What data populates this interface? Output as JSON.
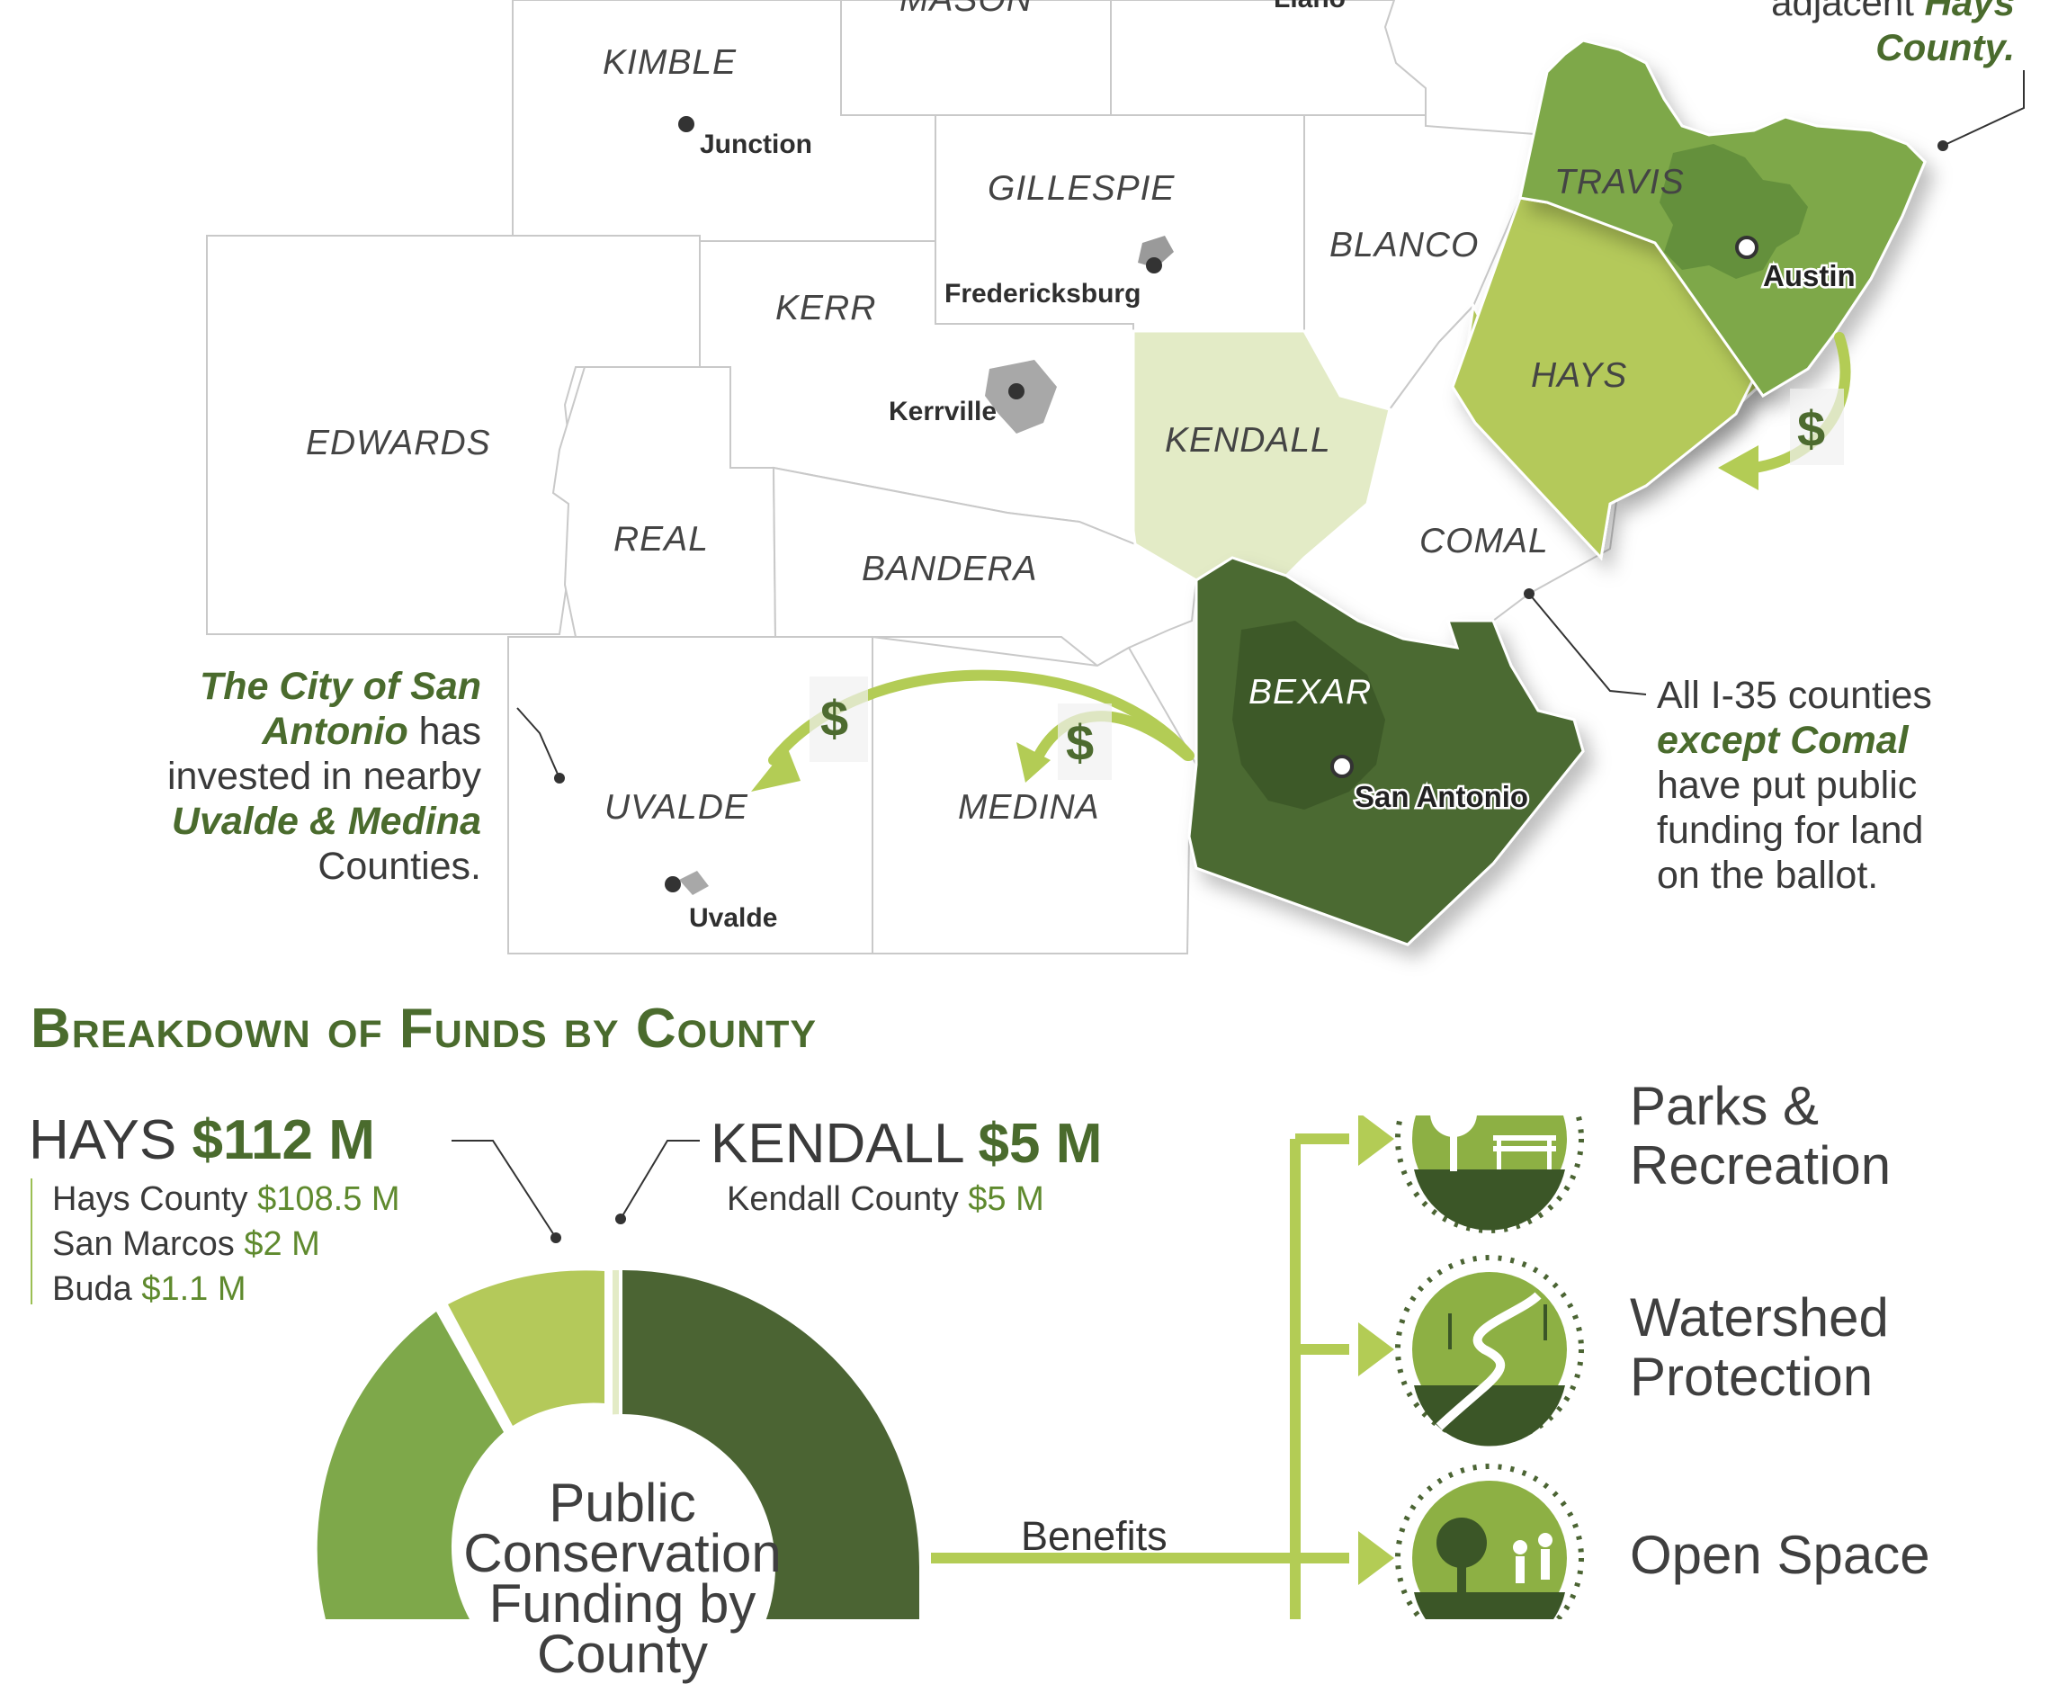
{
  "map": {
    "counties": {
      "mason": "MASON",
      "kimble": "KIMBLE",
      "gillespie": "GILLESPIE",
      "blanco": "BLANCO",
      "travis": "TRAVIS",
      "kerr": "KERR",
      "edwards": "EDWARDS",
      "real": "REAL",
      "kendall": "KENDALL",
      "hays": "HAYS",
      "bandera": "BANDERA",
      "comal": "COMAL",
      "bexar": "BEXAR",
      "uvalde": "UVALDE",
      "medina": "MEDINA"
    },
    "cities": {
      "llano": "Llano",
      "junction": "Junction",
      "fredericksburg": "Fredericksburg",
      "kerrville": "Kerrville",
      "austin": "Austin",
      "san_antonio": "San Antonio",
      "uvalde": "Uvalde"
    },
    "dollar_symbol": "$",
    "colors": {
      "travis": "#7ea84a",
      "hays": "#b4c95a",
      "kendall": "#e3ebc6",
      "bexar": "#4c6a33",
      "arrow": "#b3cc55",
      "dark_green": "#4a6b2d"
    }
  },
  "notes": {
    "hays_top": {
      "line1": "adjacent ",
      "line1_hl": "Hays",
      "line2_hl": "County."
    },
    "san_antonio": {
      "hl1": "The City of San",
      "hl2": "Antonio",
      "t2": " has",
      "t3": "invested in nearby",
      "hl4": "Uvalde & Medina",
      "t5": "Counties."
    },
    "i35": {
      "t1": "All I-35 counties",
      "hl2": "except Comal",
      "t3": "have put public",
      "t4": "funding for land",
      "t5": "on the ballot."
    }
  },
  "breakdown": {
    "heading": "Breakdown of Funds by County",
    "hays": {
      "name": "HAYS",
      "total": "$112 M",
      "items": [
        {
          "name": "Hays County",
          "amount": "$108.5 M"
        },
        {
          "name": "San Marcos",
          "amount": "$2 M"
        },
        {
          "name": "Buda",
          "amount": "$1.1 M"
        }
      ]
    },
    "kendall": {
      "name": "KENDALL",
      "total": "$5 M",
      "items": [
        {
          "name": "Kendall County",
          "amount": "$5 M"
        }
      ]
    },
    "donut_center": [
      "Public",
      "Conservation",
      "Funding by",
      "County"
    ],
    "benefits_label": "Benefits",
    "benefits": [
      {
        "line1": "Parks &",
        "line2": "Recreation",
        "icon": "tree-bench-icon"
      },
      {
        "line1": "Watershed",
        "line2": "Protection",
        "icon": "river-icon"
      },
      {
        "line1": "Open Space",
        "line2": "",
        "icon": "hikers-icon"
      }
    ]
  }
}
